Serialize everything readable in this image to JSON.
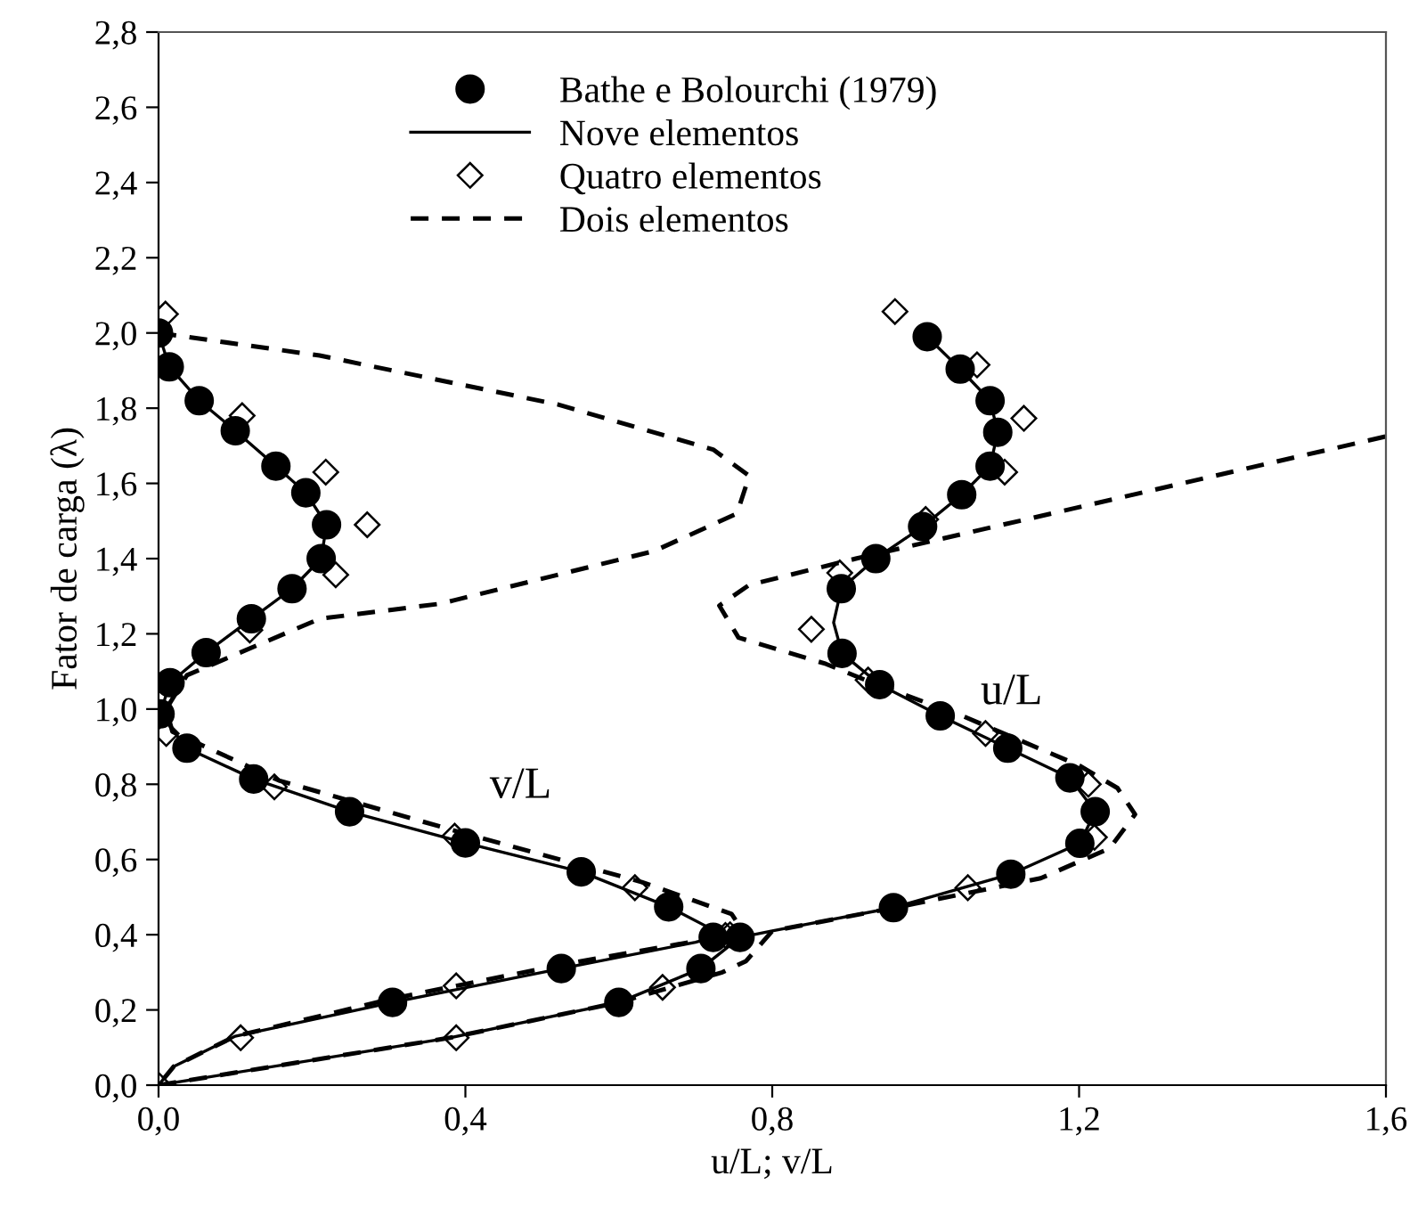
{
  "chart_data": {
    "type": "line",
    "xlabel": "u/L; v/L",
    "ylabel": "Fator de carga (λ)",
    "xlim": [
      0,
      1.6
    ],
    "ylim": [
      0,
      2.8
    ],
    "xticks": [
      {
        "value": 0,
        "label": "0,0"
      },
      {
        "value": 0.4,
        "label": "0,4"
      },
      {
        "value": 0.8,
        "label": "0,8"
      },
      {
        "value": 1.2,
        "label": "1,2"
      },
      {
        "value": 1.6,
        "label": "1,6"
      }
    ],
    "yticks": [
      {
        "value": 0,
        "label": "0,0"
      },
      {
        "value": 0.2,
        "label": "0,2"
      },
      {
        "value": 0.4,
        "label": "0,4"
      },
      {
        "value": 0.6,
        "label": "0,6"
      },
      {
        "value": 0.8,
        "label": "0,8"
      },
      {
        "value": 1.0,
        "label": "1,0"
      },
      {
        "value": 1.2,
        "label": "1,2"
      },
      {
        "value": 1.4,
        "label": "1,4"
      },
      {
        "value": 1.6,
        "label": "1,6"
      },
      {
        "value": 1.8,
        "label": "1,8"
      },
      {
        "value": 2.0,
        "label": "2,0"
      },
      {
        "value": 2.2,
        "label": "2,2"
      },
      {
        "value": 2.4,
        "label": "2,4"
      },
      {
        "value": 2.6,
        "label": "2,6"
      },
      {
        "value": 2.8,
        "label": "2,8"
      }
    ],
    "grid": false,
    "legend": "top",
    "annotations": [
      "v/L",
      "u/L"
    ],
    "series": [
      {
        "name": "Bathe e Bolourchi (1979)",
        "type": "scatter",
        "marker": "circle",
        "color": "#000000",
        "x": [
          0.0,
          0.014,
          0.053,
          0.1,
          0.153,
          0.192,
          0.219,
          0.212,
          0.174,
          0.121,
          0.062,
          0.015,
          0.002,
          0.037,
          0.124,
          0.249,
          0.4,
          0.551,
          0.665,
          0.723,
          0.525,
          0.305
        ],
        "values": [
          2.0,
          1.91,
          1.82,
          1.74,
          1.646,
          1.575,
          1.49,
          1.4,
          1.32,
          1.24,
          1.15,
          1.07,
          0.987,
          0.896,
          0.814,
          0.727,
          0.644,
          0.567,
          0.474,
          0.393,
          0.31,
          0.22
        ]
      },
      {
        "name": null,
        "type": "scatter",
        "marker": "circle",
        "color": "#000000",
        "x": [
          1.002,
          1.045,
          1.084,
          1.094,
          1.084,
          1.047,
          0.996,
          0.935,
          0.89,
          0.891,
          0.94,
          1.019,
          1.107,
          1.188,
          1.221,
          1.201,
          1.111,
          0.958,
          0.758,
          0.707,
          0.6
        ],
        "values": [
          1.99,
          1.904,
          1.82,
          1.736,
          1.646,
          1.57,
          1.485,
          1.4,
          1.32,
          1.148,
          1.065,
          0.982,
          0.896,
          0.817,
          0.727,
          0.643,
          0.561,
          0.472,
          0.393,
          0.31,
          0.22
        ]
      },
      {
        "name": "Nove elementos",
        "marker": "none",
        "line_style": "solid",
        "color": "#000000",
        "x": [
          0.0,
          0.014,
          0.053,
          0.1,
          0.153,
          0.192,
          0.219,
          0.212,
          0.174,
          0.121,
          0.062,
          0.015,
          0.002,
          0.037,
          0.124,
          0.249,
          0.4,
          0.551,
          0.665,
          0.735,
          0.7,
          0.525,
          0.305,
          0.1,
          0.02,
          0.0
        ],
        "values": [
          2.0,
          1.91,
          1.82,
          1.74,
          1.646,
          1.575,
          1.49,
          1.4,
          1.32,
          1.24,
          1.15,
          1.07,
          0.987,
          0.896,
          0.814,
          0.727,
          0.644,
          0.567,
          0.474,
          0.4,
          0.38,
          0.31,
          0.22,
          0.13,
          0.05,
          0.0
        ]
      },
      {
        "name": null,
        "marker": "none",
        "line_style": "solid",
        "color": "#000000",
        "x": [
          1.002,
          1.045,
          1.084,
          1.094,
          1.084,
          1.047,
          0.996,
          0.935,
          0.89,
          0.88,
          0.891,
          0.94,
          1.019,
          1.107,
          1.188,
          1.221,
          1.201,
          1.111,
          0.958,
          0.8,
          0.758,
          0.707,
          0.6,
          0.38,
          0.0
        ],
        "values": [
          1.99,
          1.904,
          1.82,
          1.736,
          1.646,
          1.57,
          1.485,
          1.4,
          1.32,
          1.23,
          1.148,
          1.065,
          0.982,
          0.896,
          0.817,
          0.727,
          0.643,
          0.561,
          0.472,
          0.41,
          0.393,
          0.31,
          0.22,
          0.126,
          0.0
        ]
      },
      {
        "name": "Quatro elementos",
        "type": "scatter",
        "marker": "diamond",
        "color": "#000000",
        "x": [
          0.009,
          0.018,
          0.109,
          0.218,
          0.272,
          0.231,
          0.119,
          0.012,
          0.01,
          0.151,
          0.386,
          0.621,
          0.739,
          0.388,
          0.107,
          0.0
        ],
        "values": [
          2.05,
          null,
          1.78,
          1.63,
          1.49,
          1.357,
          1.21,
          null,
          0.935,
          0.793,
          0.662,
          0.525,
          0.398,
          0.264,
          0.126,
          0.0
        ]
      },
      {
        "name": null,
        "type": "scatter",
        "marker": "diamond",
        "color": "#000000",
        "x": [
          0.96,
          1.067,
          1.128,
          1.103,
          1.0,
          0.888,
          0.851,
          0.925,
          1.078,
          1.212,
          1.22,
          1.055,
          0.745,
          0.657,
          0.388
        ],
        "values": [
          2.057,
          1.915,
          1.773,
          1.63,
          1.504,
          1.362,
          1.212,
          1.077,
          0.935,
          0.8,
          0.659,
          0.525,
          0.4,
          0.26,
          0.126
        ]
      },
      {
        "name": "Dois elementos",
        "marker": "none",
        "line_style": "dashed",
        "color": "#000000",
        "x": [
          0.0,
          0.21,
          0.52,
          0.723,
          0.77,
          0.754,
          0.646,
          0.367,
          0.21,
          0.037,
          0.01,
          0.018,
          0.157,
          0.38,
          0.63,
          0.747,
          0.765,
          0.72,
          0.525,
          0.305,
          0.1,
          0.02,
          0.0
        ],
        "values": [
          2.0,
          1.94,
          1.81,
          1.69,
          1.62,
          1.52,
          1.42,
          1.28,
          1.24,
          1.09,
          1.0,
          0.94,
          0.81,
          0.68,
          0.54,
          0.455,
          0.4,
          0.39,
          0.32,
          0.23,
          0.13,
          0.05,
          0.0
        ]
      },
      {
        "name": null,
        "marker": "none",
        "line_style": "dashed",
        "color": "#000000",
        "x": [
          0.0,
          0.38,
          0.6,
          0.735,
          0.766,
          0.8,
          0.96,
          1.15,
          1.24,
          1.273,
          1.25,
          1.2,
          1.05,
          0.93,
          0.87,
          0.756,
          0.731,
          0.77,
          0.909,
          1.6
        ],
        "values": [
          0.0,
          0.126,
          0.22,
          0.3,
          0.33,
          0.41,
          0.472,
          0.55,
          0.63,
          0.72,
          0.79,
          0.85,
          0.98,
          1.07,
          1.12,
          1.19,
          1.275,
          1.33,
          1.4,
          1.725
        ]
      }
    ]
  }
}
